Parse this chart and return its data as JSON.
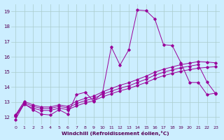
{
  "xlabel": "Windchill (Refroidissement éolien,°C)",
  "bg_color": "#cceeff",
  "line_color": "#990099",
  "grid_color": "#aacccc",
  "xlim": [
    -0.5,
    23.5
  ],
  "ylim": [
    11.5,
    19.5
  ],
  "yticks": [
    12,
    13,
    14,
    15,
    16,
    17,
    18,
    19
  ],
  "xticks": [
    0,
    1,
    2,
    3,
    4,
    5,
    6,
    7,
    8,
    9,
    10,
    11,
    12,
    13,
    14,
    15,
    16,
    17,
    18,
    19,
    20,
    21,
    22,
    23
  ],
  "line1_x": [
    0,
    1,
    2,
    3,
    4,
    5,
    6,
    7,
    8,
    9,
    10,
    11,
    12,
    13,
    14,
    15,
    16,
    17,
    18,
    19,
    20,
    21,
    22,
    23
  ],
  "line1_y": [
    11.85,
    12.9,
    12.5,
    12.2,
    12.15,
    12.5,
    12.2,
    13.5,
    13.65,
    13.05,
    13.65,
    16.65,
    15.45,
    16.45,
    19.1,
    19.05,
    18.5,
    16.8,
    16.75,
    15.6,
    14.3,
    14.3,
    13.5,
    13.6
  ],
  "line2_x": [
    0,
    1,
    2,
    3,
    4,
    5,
    6,
    7,
    8,
    9,
    10,
    11,
    12,
    13,
    14,
    15,
    16,
    17,
    18,
    19,
    20,
    21,
    22,
    23
  ],
  "line2_y": [
    12.05,
    12.85,
    12.6,
    12.45,
    12.45,
    12.6,
    12.5,
    12.75,
    12.95,
    13.1,
    13.35,
    13.55,
    13.75,
    13.9,
    14.1,
    14.3,
    14.55,
    14.75,
    14.9,
    15.05,
    15.15,
    15.25,
    15.3,
    15.35
  ],
  "line3_x": [
    0,
    1,
    2,
    3,
    4,
    5,
    6,
    7,
    8,
    9,
    10,
    11,
    12,
    13,
    14,
    15,
    16,
    17,
    18,
    19,
    20,
    21,
    22,
    23
  ],
  "line3_y": [
    12.1,
    12.95,
    12.72,
    12.58,
    12.58,
    12.72,
    12.62,
    12.9,
    13.1,
    13.25,
    13.52,
    13.72,
    13.92,
    14.08,
    14.3,
    14.52,
    14.78,
    14.98,
    15.13,
    15.28,
    15.38,
    15.48,
    14.32,
    13.55
  ],
  "line4_x": [
    0,
    1,
    2,
    3,
    4,
    5,
    6,
    7,
    8,
    9,
    10,
    11,
    12,
    13,
    14,
    15,
    16,
    17,
    18,
    19,
    20,
    21,
    22,
    23
  ],
  "line4_y": [
    12.15,
    13.05,
    12.82,
    12.68,
    12.68,
    12.82,
    12.72,
    13.05,
    13.25,
    13.4,
    13.68,
    13.9,
    14.12,
    14.28,
    14.5,
    14.72,
    14.98,
    15.18,
    15.33,
    15.48,
    15.58,
    15.68,
    15.65,
    15.6
  ]
}
